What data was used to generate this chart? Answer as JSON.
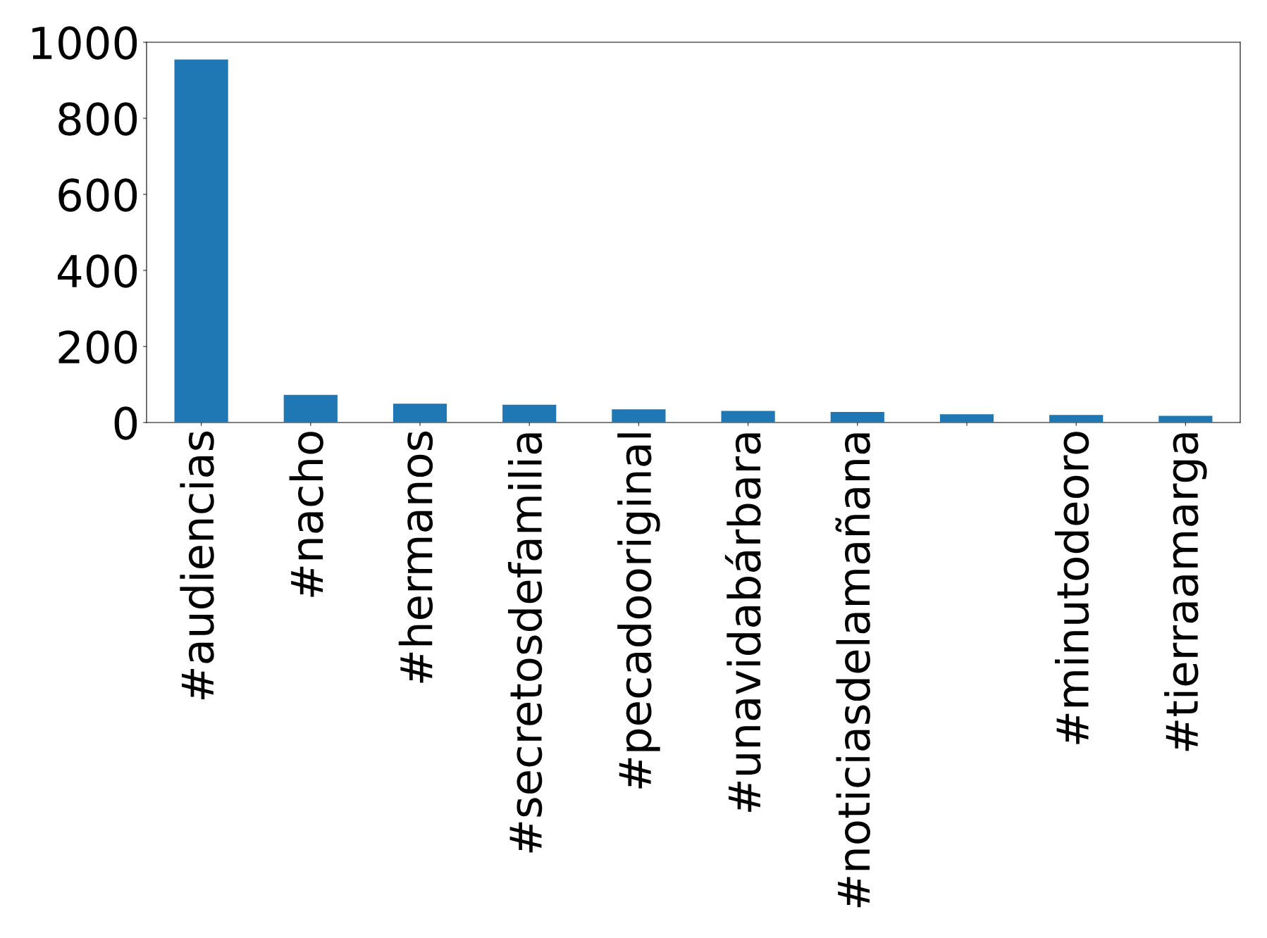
{
  "chart_data": {
    "type": "bar",
    "categories": [
      "#audiencias",
      "#nacho",
      "#hermanos",
      "#secretosdefamilia",
      "#pecadooriginal",
      "#unavidabárbara",
      "#noticiasdelamañana",
      null,
      "#minutodeoro",
      "#tierraamarga"
    ],
    "values": [
      956,
      74,
      51,
      48,
      36,
      32,
      29,
      23,
      21,
      19
    ],
    "color": "#1f77b4",
    "ylim": [
      0,
      1000
    ],
    "yticks": [
      0,
      200,
      400,
      600,
      800,
      1000
    ],
    "grid": false
  }
}
